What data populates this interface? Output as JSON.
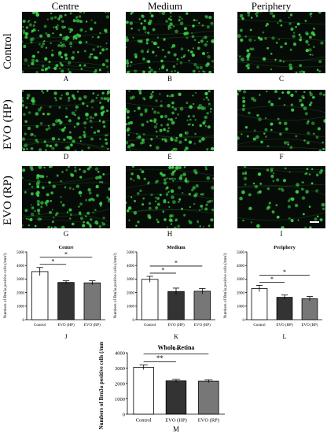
{
  "figure": {
    "columns": [
      "Centre",
      "Medium",
      "Periphery"
    ],
    "rows": [
      "Control",
      "EVO (HP)",
      "EVO (RP)"
    ],
    "panel_letters": [
      "A",
      "B",
      "C",
      "D",
      "E",
      "F",
      "G",
      "H",
      "I"
    ],
    "cell_color": "#3dd14a",
    "background_color": "#070b07",
    "scale_bar_color": "#ffffff"
  },
  "chart_data": [
    {
      "type": "bar",
      "panel": "J",
      "title": "Centre",
      "ylabel": "Numbers of Brn3a positive cells (/mm²)",
      "categories": [
        "Control",
        "EVO (HP)",
        "EVO (RP)"
      ],
      "values": [
        3550,
        2750,
        2720
      ],
      "errors": [
        300,
        120,
        150
      ],
      "ylim": [
        0,
        5000
      ],
      "yticks": [
        "0",
        "1000",
        "2000",
        "3000",
        "4000",
        "5000"
      ],
      "bar_colors": [
        "#ffffff",
        "#333333",
        "#777777"
      ],
      "significance": [
        "*",
        "*"
      ]
    },
    {
      "type": "bar",
      "panel": "K",
      "title": "Medium",
      "ylabel": "Numbers of Brn3a positive cells (/mm²)",
      "categories": [
        "Control",
        "EVO (HP)",
        "EVO (RP)"
      ],
      "values": [
        2980,
        2080,
        2100
      ],
      "errors": [
        220,
        250,
        200
      ],
      "ylim": [
        0,
        5000
      ],
      "yticks": [
        "0",
        "1000",
        "2000",
        "3000",
        "4000",
        "5000"
      ],
      "bar_colors": [
        "#ffffff",
        "#333333",
        "#777777"
      ],
      "significance": [
        "*",
        "*"
      ]
    },
    {
      "type": "bar",
      "panel": "L",
      "title": "Periphery",
      "ylabel": "Numbers of Brn3a positive cells (/mm²)",
      "categories": [
        "Control",
        "EVO (HP)",
        "EVO (RP)"
      ],
      "values": [
        2300,
        1650,
        1550
      ],
      "errors": [
        230,
        170,
        160
      ],
      "ylim": [
        0,
        5000
      ],
      "yticks": [
        "0",
        "1000",
        "2000",
        "3000",
        "4000",
        "5000"
      ],
      "bar_colors": [
        "#ffffff",
        "#333333",
        "#777777"
      ],
      "significance": [
        "*",
        "*"
      ]
    },
    {
      "type": "bar",
      "panel": "M",
      "title": "Whole Retina",
      "ylabel": "Numbers of Brn3a positive cells (/mm²)",
      "categories": [
        "Control",
        "EVO (HP)",
        "EVO (RP)"
      ],
      "values": [
        3050,
        2170,
        2150
      ],
      "errors": [
        150,
        100,
        90
      ],
      "ylim": [
        0,
        4000
      ],
      "yticks": [
        "0",
        "1000",
        "2000",
        "3000",
        "4000"
      ],
      "bar_colors": [
        "#ffffff",
        "#333333",
        "#777777"
      ],
      "significance": [
        "**",
        "**"
      ]
    }
  ]
}
